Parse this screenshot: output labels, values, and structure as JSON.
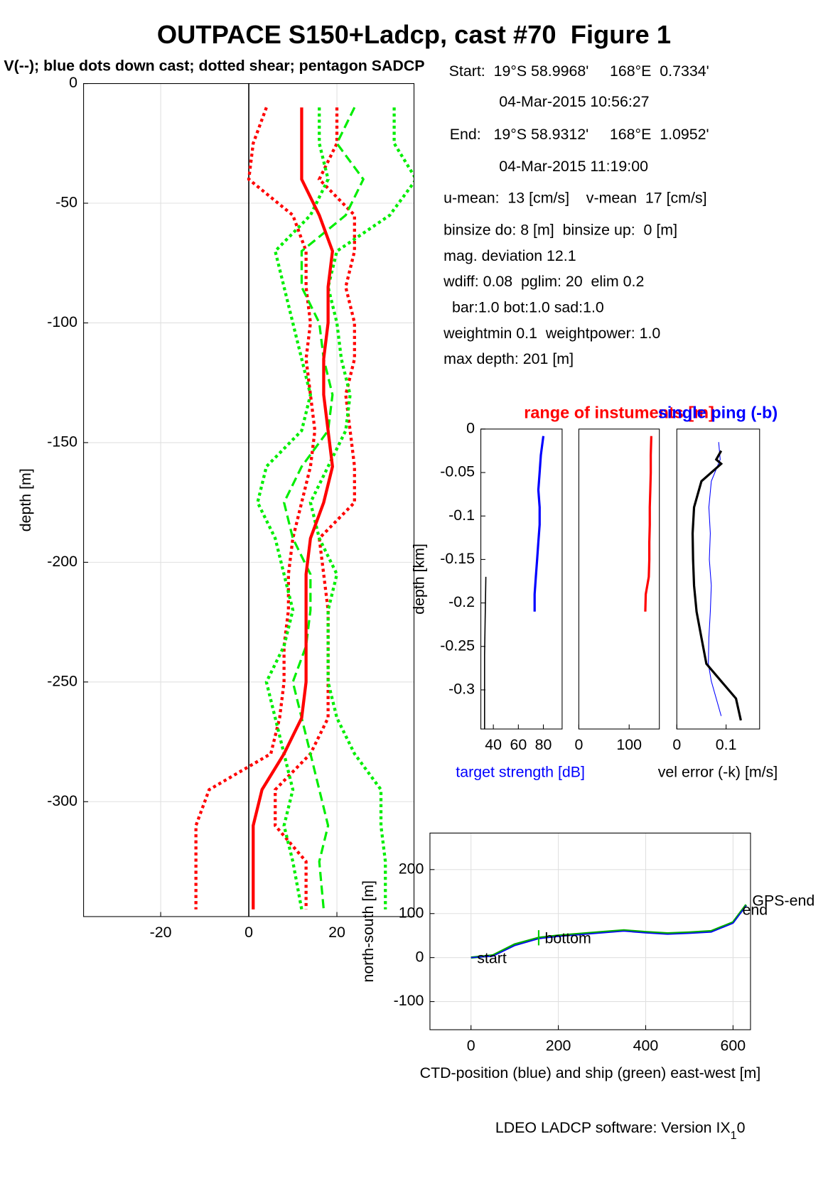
{
  "header": {
    "title": "OUTPACE S150+Ladcp, cast #70  Figure 1"
  },
  "info": [
    "Start:  19°S 58.9968'     168°E  0.7334'",
    "04-Mar-2015 10:56:27",
    "End:   19°S 58.9312'     168°E  1.0952'",
    "04-Mar-2015 11:19:00",
    "u-mean:  13 [cm/s]    v-mean  17 [cm/s]",
    "binsize do: 8 [m]  binsize up:  0 [m]",
    "mag. deviation 12.1",
    "wdiff: 0.08  pglim: 20  elim 0.2",
    "  bar:1.0 bot:1.0 sad:1.0",
    "weightmin 0.1  weightpower: 1.0",
    "max depth: 201 [m]"
  ],
  "footer": {
    "text": "LDEO LADCP software: Version IX",
    "sub": "1",
    "tail": "0"
  },
  "chart_data": [
    {
      "type": "line",
      "title": "V(--); blue dots down cast; dotted shear; pentagon SADCP",
      "ylabel": "depth [m]",
      "xlim": [
        -37.5,
        37.5
      ],
      "ylim": [
        -348,
        0
      ],
      "xticks": [
        -20,
        0,
        20
      ],
      "yticks": [
        0,
        -50,
        -100,
        -150,
        -200,
        -250,
        -300
      ],
      "grid": true,
      "zero_line": true,
      "series": [
        {
          "color": "#ff0000",
          "style": "dotted",
          "width": 4,
          "x": [
            4,
            1,
            0,
            10,
            13,
            13,
            14,
            13,
            14,
            15,
            14,
            12,
            10,
            9,
            9,
            8,
            8,
            7,
            5,
            -9,
            -12,
            -12,
            -12
          ],
          "y": [
            -10,
            -25,
            -40,
            -55,
            -70,
            -85,
            -100,
            -115,
            -130,
            -145,
            -160,
            -175,
            -190,
            -205,
            -220,
            -235,
            -250,
            -265,
            -280,
            -295,
            -310,
            -325,
            -345
          ]
        },
        {
          "color": "#ff0000",
          "style": "dotted",
          "width": 4,
          "x": [
            20,
            20,
            16,
            24,
            24,
            22,
            24,
            24,
            22,
            23,
            24,
            24,
            16,
            17,
            18,
            18,
            18,
            18,
            14,
            6,
            6,
            13,
            13
          ],
          "y": [
            -10,
            -25,
            -40,
            -55,
            -70,
            -85,
            -100,
            -115,
            -130,
            -145,
            -160,
            -175,
            -190,
            -205,
            -220,
            -235,
            -250,
            -265,
            -280,
            -295,
            -310,
            -325,
            -345
          ]
        },
        {
          "color": "#00ee00",
          "style": "dotted",
          "width": 4,
          "x": [
            16,
            16,
            18,
            14,
            6,
            8,
            10,
            12,
            14,
            12,
            4,
            2,
            6,
            8,
            10,
            8,
            4,
            6,
            8,
            10,
            8,
            10,
            12
          ],
          "y": [
            -10,
            -25,
            -40,
            -55,
            -70,
            -85,
            -100,
            -115,
            -130,
            -145,
            -160,
            -175,
            -190,
            -205,
            -220,
            -235,
            -250,
            -265,
            -280,
            -295,
            -310,
            -325,
            -345
          ]
        },
        {
          "color": "#00ee00",
          "style": "dotted",
          "width": 4,
          "x": [
            33,
            33,
            38,
            32,
            20,
            18,
            20,
            21,
            23,
            22,
            18,
            14,
            16,
            20,
            18,
            18,
            18,
            20,
            24,
            30,
            30,
            31,
            31
          ],
          "y": [
            -10,
            -25,
            -40,
            -55,
            -70,
            -85,
            -100,
            -115,
            -130,
            -145,
            -160,
            -175,
            -190,
            -205,
            -220,
            -235,
            -250,
            -265,
            -280,
            -295,
            -310,
            -325,
            -345
          ]
        },
        {
          "color": "#00ee00",
          "style": "dashed",
          "width": 3,
          "x": [
            24,
            20,
            26,
            22,
            12,
            12,
            16,
            17,
            19,
            18,
            12,
            8,
            10,
            14,
            14,
            13,
            10,
            12,
            14,
            16,
            18,
            16,
            17
          ],
          "y": [
            -10,
            -25,
            -40,
            -55,
            -70,
            -85,
            -100,
            -115,
            -130,
            -145,
            -160,
            -175,
            -190,
            -205,
            -220,
            -235,
            -250,
            -265,
            -280,
            -295,
            -310,
            -325,
            -345
          ]
        },
        {
          "color": "#ff0000",
          "style": "solid",
          "width": 4,
          "x": [
            12,
            12,
            12,
            16,
            19,
            18,
            18,
            17,
            17,
            18,
            19,
            17,
            14,
            13,
            13,
            13,
            13,
            12,
            8,
            3,
            1,
            1,
            1
          ],
          "y": [
            -10,
            -25,
            -40,
            -55,
            -70,
            -85,
            -100,
            -115,
            -130,
            -145,
            -160,
            -175,
            -190,
            -205,
            -220,
            -235,
            -250,
            -265,
            -280,
            -295,
            -310,
            -325,
            -345
          ]
        }
      ]
    },
    {
      "type": "line",
      "title": "range of instuments [m]",
      "title_color": "#ff0000",
      "ylabel": "depth [km]",
      "xlabel": "target strength [dB]",
      "xlabel_color": "#0000ff",
      "xlim": [
        30,
        95
      ],
      "ylim": [
        -0.345,
        0
      ],
      "xticks": [
        40,
        60,
        80
      ],
      "yticks": [
        0,
        -0.05,
        -0.1,
        -0.15,
        -0.2,
        -0.25,
        -0.3
      ],
      "grid": false,
      "series": [
        {
          "color": "#0000ff",
          "style": "solid",
          "width": 3,
          "x": [
            80,
            78,
            77,
            76,
            77,
            77,
            76,
            75,
            74,
            73,
            73
          ],
          "y": [
            -0.008,
            -0.03,
            -0.05,
            -0.07,
            -0.09,
            -0.11,
            -0.13,
            -0.15,
            -0.17,
            -0.19,
            -0.21
          ]
        },
        {
          "color": "#000000",
          "style": "solid",
          "width": 1.5,
          "x": [
            34,
            33,
            33
          ],
          "y": [
            -0.17,
            -0.26,
            -0.345
          ]
        }
      ]
    },
    {
      "type": "line",
      "xlim": [
        0,
        160
      ],
      "ylim": [
        -0.345,
        0
      ],
      "xticks": [
        0,
        100
      ],
      "grid": false,
      "series": [
        {
          "color": "#ff0000",
          "style": "solid",
          "width": 3,
          "x": [
            144,
            143,
            143,
            142,
            141,
            141,
            140,
            140,
            139,
            136,
            133,
            132
          ],
          "y": [
            -0.008,
            -0.03,
            -0.05,
            -0.07,
            -0.09,
            -0.11,
            -0.13,
            -0.15,
            -0.17,
            -0.18,
            -0.19,
            -0.21
          ]
        }
      ]
    },
    {
      "type": "line",
      "title": "single ping (-b)",
      "title_color": "#0000ff",
      "xlabel": "vel error (-k) [m/s]",
      "xlim": [
        0,
        0.168
      ],
      "ylim": [
        -0.345,
        0
      ],
      "xticks": [
        0,
        0.1
      ],
      "grid": false,
      "series": [
        {
          "color": "#0000ff",
          "style": "solid",
          "width": 1,
          "x": [
            0.085,
            0.088,
            0.07,
            0.065,
            0.068,
            0.066,
            0.07,
            0.068,
            0.065,
            0.064,
            0.07,
            0.08,
            0.09
          ],
          "y": [
            -0.015,
            -0.035,
            -0.06,
            -0.09,
            -0.12,
            -0.15,
            -0.18,
            -0.21,
            -0.24,
            -0.27,
            -0.29,
            -0.31,
            -0.33
          ]
        },
        {
          "color": "#000000",
          "style": "solid",
          "width": 3,
          "x": [
            0.09,
            0.08,
            0.09,
            0.05,
            0.035,
            0.032,
            0.033,
            0.035,
            0.04,
            0.05,
            0.06,
            0.09,
            0.12,
            0.13
          ],
          "y": [
            -0.025,
            -0.035,
            -0.04,
            -0.06,
            -0.09,
            -0.12,
            -0.15,
            -0.18,
            -0.21,
            -0.24,
            -0.27,
            -0.29,
            -0.31,
            -0.335
          ]
        }
      ]
    },
    {
      "type": "line",
      "xlabel": "CTD-position (blue) and ship (green) east-west [m]",
      "ylabel": "north-south [m]",
      "xlim": [
        -94,
        640
      ],
      "ylim": [
        -164,
        283
      ],
      "xticks": [
        0,
        200,
        400,
        600
      ],
      "yticks": [
        -100,
        0,
        100,
        200
      ],
      "grid": true,
      "annotations": [
        "start",
        "bottom",
        "end",
        "GPS-end"
      ],
      "series": [
        {
          "color": "#00aa00",
          "style": "solid",
          "width": 3,
          "x": [
            0,
            50,
            100,
            155,
            200,
            300,
            350,
            400,
            450,
            500,
            550,
            600,
            630
          ],
          "y": [
            0,
            5,
            30,
            45,
            50,
            58,
            62,
            58,
            55,
            57,
            60,
            80,
            120
          ]
        },
        {
          "color": "#0000ff",
          "style": "solid",
          "width": 1.5,
          "x": [
            0,
            50,
            100,
            155,
            200,
            300,
            350,
            400,
            450,
            500,
            550,
            600,
            630
          ],
          "y": [
            0,
            3,
            27,
            43,
            48,
            56,
            60,
            56,
            53,
            55,
            58,
            78,
            118
          ]
        }
      ]
    }
  ]
}
